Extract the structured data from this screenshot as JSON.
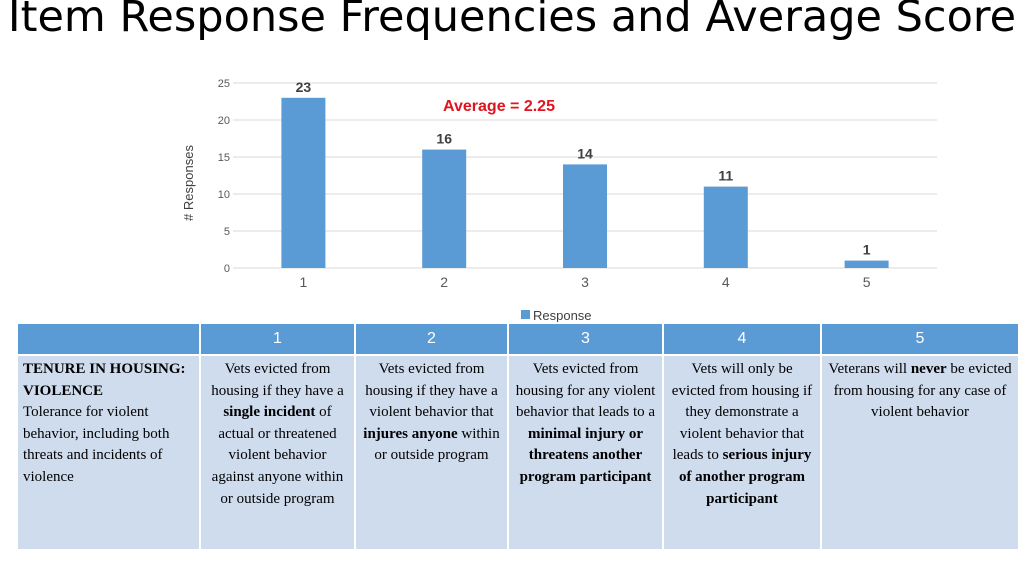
{
  "slide": {
    "title": "Item Response Frequencies and Average Score"
  },
  "chart_data": {
    "type": "bar",
    "categories": [
      "1",
      "2",
      "3",
      "4",
      "5"
    ],
    "series": [
      {
        "name": "Response",
        "values": [
          23,
          16,
          14,
          11,
          1
        ]
      }
    ],
    "ylabel": "# Responses",
    "ylim": [
      0,
      25
    ],
    "yticks": [
      0,
      5,
      10,
      15,
      20,
      25
    ],
    "data_labels": true,
    "gridlines": true,
    "legend": "bottom",
    "annotation": "Average = 2.25",
    "colors": {
      "bar": "#5b9bd5",
      "annotation": "#e0141e"
    }
  },
  "table": {
    "headers": [
      "",
      "1",
      "2",
      "3",
      "4",
      "5"
    ],
    "rows": [
      [
        [
          {
            "t": "TENURE IN HOUSING: VIOLENCE",
            "b": true
          },
          {
            "br": true
          },
          {
            "t": "Tolerance for violent behavior, including both threats and incidents of violence"
          }
        ],
        [
          {
            "t": "Vets evicted from housing if they have a "
          },
          {
            "t": "single incident",
            "b": true
          },
          {
            "t": " of actual or threatened violent behavior against anyone within or outside program"
          }
        ],
        [
          {
            "t": "Vets evicted from housing if they have a violent behavior that "
          },
          {
            "t": "injures anyone",
            "b": true
          },
          {
            "t": " within or outside program"
          }
        ],
        [
          {
            "t": "Vets evicted from housing for any violent behavior that leads to a "
          },
          {
            "t": "minimal injury or threatens another program participant",
            "b": true
          }
        ],
        [
          {
            "t": "Vets will only be evicted from housing if they demonstrate a violent behavior that leads to "
          },
          {
            "t": "serious injury of another program participant",
            "b": true
          }
        ],
        [
          {
            "t": "Veterans will "
          },
          {
            "t": "never",
            "b": true
          },
          {
            "t": " be evicted from housing for any case of violent behavior"
          }
        ]
      ]
    ]
  }
}
